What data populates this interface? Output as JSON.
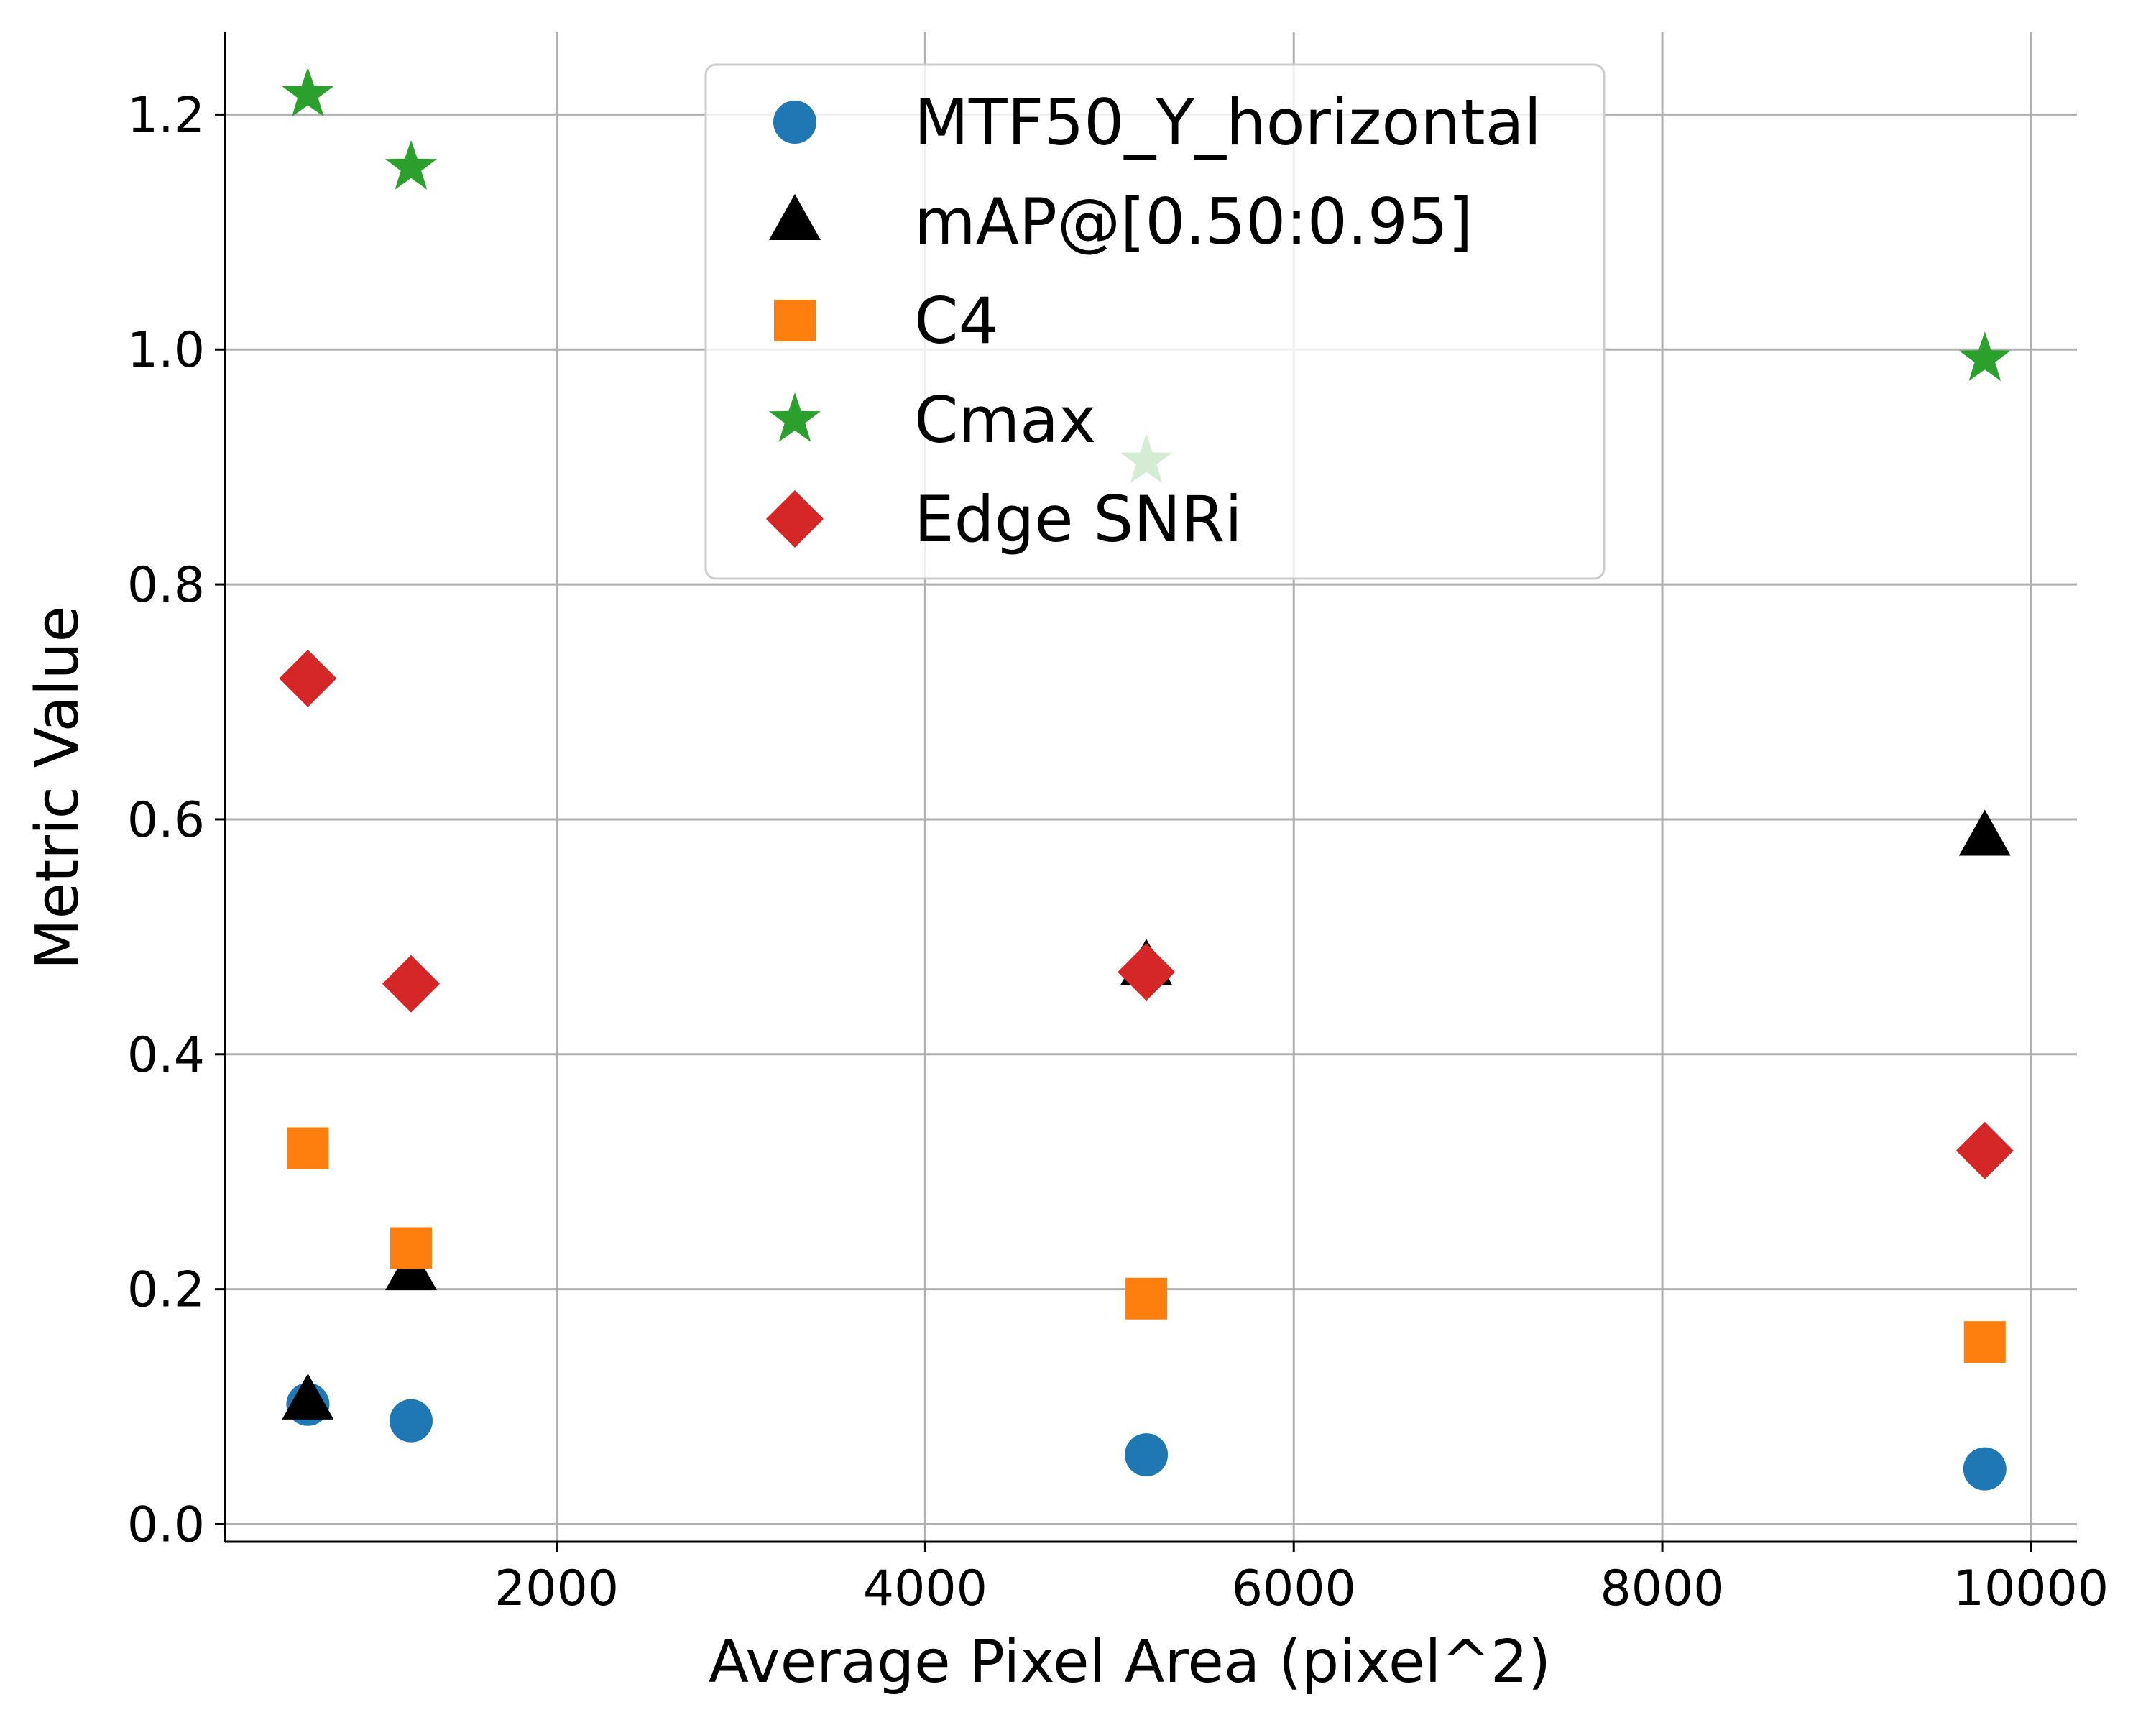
{
  "chart_data": {
    "type": "scatter",
    "xlabel": "Average Pixel Area (pixel^2)",
    "ylabel": "Metric Value",
    "xlim": [
      200,
      10250
    ],
    "ylim": [
      -0.015,
      1.27
    ],
    "xticks": [
      2000,
      4000,
      6000,
      8000,
      10000
    ],
    "yticks": [
      0.0,
      0.2,
      0.4,
      0.6,
      0.8,
      1.0,
      1.2
    ],
    "xtick_labels": [
      "2000",
      "4000",
      "6000",
      "8000",
      "10000"
    ],
    "ytick_labels": [
      "0.0",
      "0.2",
      "0.4",
      "0.6",
      "0.8",
      "1.0",
      "1.2"
    ],
    "grid": true,
    "legend_position": "top-center",
    "series": [
      {
        "name": "MTF50_Y_horizontal",
        "marker": "circle",
        "color": "#1f77b4",
        "x": [
          650,
          1210,
          5200,
          9750
        ],
        "y": [
          0.102,
          0.088,
          0.059,
          0.047
        ]
      },
      {
        "name": "mAP@[0.50:0.95]",
        "marker": "triangle",
        "color": "#000000",
        "x": [
          650,
          1210,
          5200,
          9750
        ],
        "y": [
          0.105,
          0.215,
          0.475,
          0.585
        ]
      },
      {
        "name": "C4",
        "marker": "square",
        "color": "#ff7f0e",
        "x": [
          650,
          1210,
          5200,
          9750
        ],
        "y": [
          0.32,
          0.235,
          0.192,
          0.155
        ]
      },
      {
        "name": "Cmax",
        "marker": "star",
        "color": "#2ca02c",
        "x": [
          650,
          1210,
          5200,
          9750
        ],
        "y": [
          1.217,
          1.155,
          0.905,
          0.992
        ]
      },
      {
        "name": "Edge SNRi",
        "marker": "diamond",
        "color": "#d62728",
        "x": [
          650,
          1210,
          5200,
          9750
        ],
        "y": [
          0.72,
          0.46,
          0.47,
          0.318
        ]
      }
    ]
  }
}
